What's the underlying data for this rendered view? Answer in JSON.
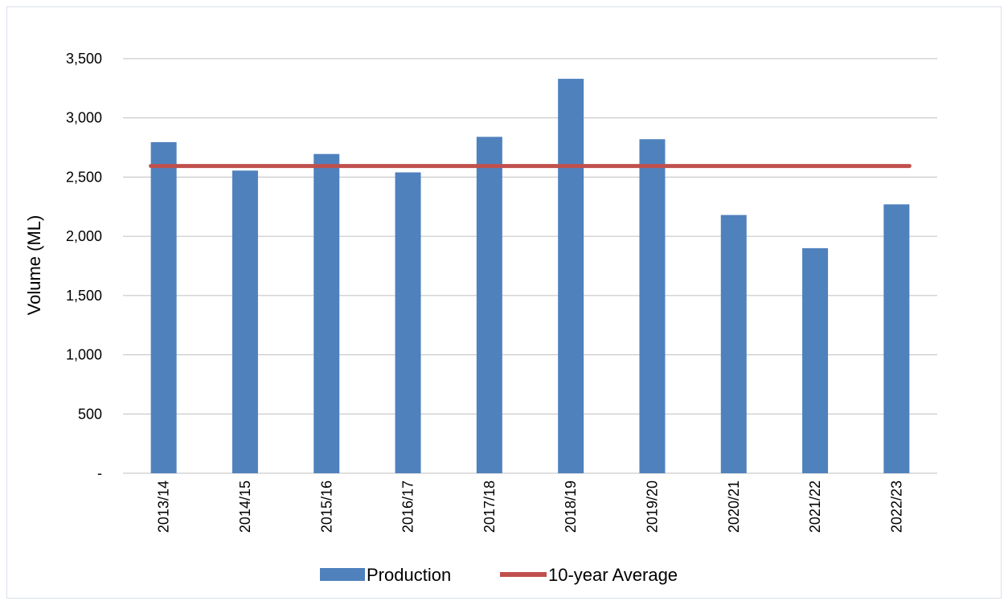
{
  "chart_data": {
    "type": "bar",
    "title": "",
    "xlabel": "",
    "ylabel": "Volume (ML)",
    "categories": [
      "2013/14",
      "2014/15",
      "2015/16",
      "2016/17",
      "2017/18",
      "2018/19",
      "2019/20",
      "2020/21",
      "2021/22",
      "2022/23"
    ],
    "series": [
      {
        "name": "Production",
        "type": "bar",
        "color": "#4f81bd",
        "values": [
          2795,
          2555,
          2695,
          2540,
          2840,
          3330,
          2820,
          2180,
          1900,
          2270
        ]
      },
      {
        "name": "10-year Average",
        "type": "line",
        "color": "#c0504d",
        "values": [
          2594,
          2594,
          2594,
          2594,
          2594,
          2594,
          2594,
          2594,
          2594,
          2594
        ]
      }
    ],
    "ylim": [
      0,
      3500
    ],
    "yticks": [
      0,
      500,
      1000,
      1500,
      2000,
      2500,
      3000,
      3500
    ],
    "ytick_labels": [
      "-",
      "500",
      "1,000",
      "1,500",
      "2,000",
      "2,500",
      "3,000",
      "3,500"
    ],
    "grid": true,
    "gridline_color": "#bfbfbf",
    "legend_position": "bottom"
  }
}
